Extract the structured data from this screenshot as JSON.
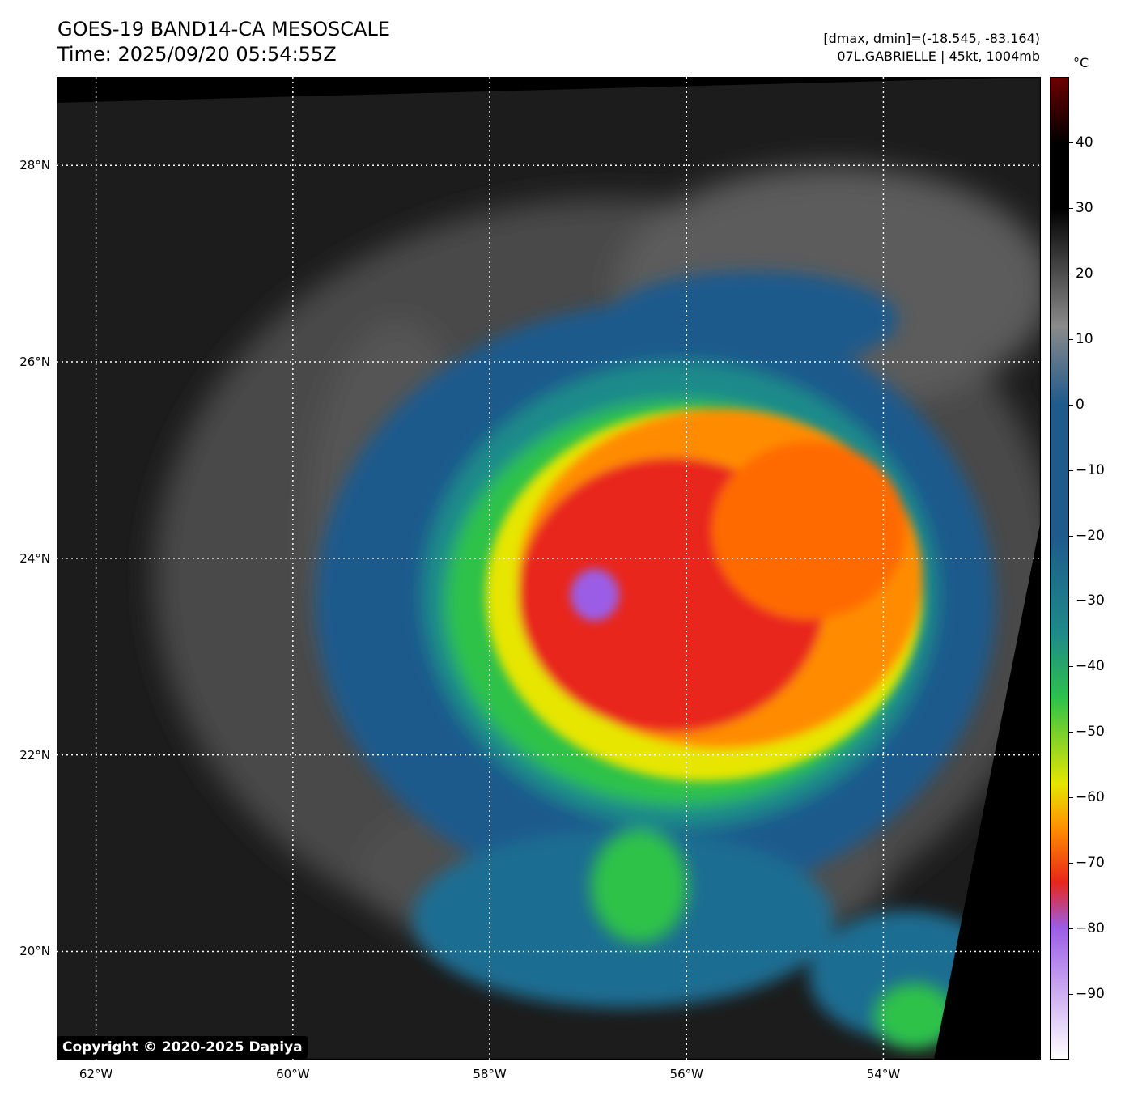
{
  "header": {
    "title": "GOES-19 BAND14-CA MESOSCALE",
    "time": "Time: 2025/09/20 05:54:55Z",
    "range_text": "[dmax, dmin]=(-18.545, -83.164)",
    "storm_text": "07L.GABRIELLE | 45kt, 1004mb"
  },
  "map": {
    "lon_range": [
      -62.4,
      -52.4
    ],
    "lat_range": [
      18.9,
      28.9
    ],
    "lat_labels": [
      {
        "value": 28,
        "label": "28°N"
      },
      {
        "value": 26,
        "label": "26°N"
      },
      {
        "value": 24,
        "label": "24°N"
      },
      {
        "value": 22,
        "label": "22°N"
      },
      {
        "value": 20,
        "label": "20°N"
      }
    ],
    "lon_labels": [
      {
        "value": -62,
        "label": "62°W"
      },
      {
        "value": -60,
        "label": "60°W"
      },
      {
        "value": -58,
        "label": "58°W"
      },
      {
        "value": -56,
        "label": "56°W"
      },
      {
        "value": -54,
        "label": "54°W"
      }
    ],
    "storm_center": {
      "lon": -57.1,
      "lat": 23.7
    }
  },
  "colorbar": {
    "unit": "°C",
    "range": [
      -100,
      50
    ],
    "ticks": [
      40,
      30,
      20,
      10,
      0,
      -10,
      -20,
      -30,
      -40,
      -50,
      -60,
      -70,
      -80,
      -90
    ],
    "tick_labels": [
      "40",
      "30",
      "20",
      "10",
      "0",
      "−10",
      "−20",
      "−30",
      "−40",
      "−50",
      "−60",
      "−70",
      "−80",
      "−90"
    ],
    "colors": {
      "top": "#6b0000",
      "warm_black": "#000000",
      "gray": "#8a8a8a",
      "blue": "#1e5a8c",
      "teal": "#1f8a8a",
      "green": "#2ec24a",
      "yellow": "#e6e600",
      "orange": "#ff8c00",
      "red": "#e8261a",
      "purple": "#9b5de5",
      "bottom": "#ffffff"
    }
  },
  "footer": {
    "copyright": "Copyright © 2020-2025 Dapiya"
  }
}
